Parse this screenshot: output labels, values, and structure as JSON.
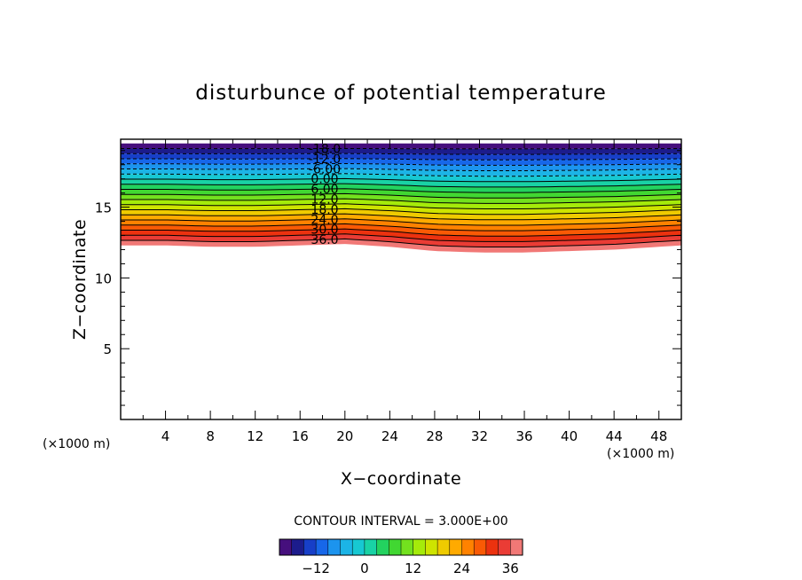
{
  "chart_data": {
    "type": "contour",
    "title": "disturbunce of potential temperature",
    "xlabel": "X−coordinate",
    "ylabel": "Z−coordinate",
    "x_unit_label_left": "(×1000 m)",
    "x_unit_label_right": "(×1000 m)",
    "xlim": [
      0,
      50
    ],
    "ylim": [
      0,
      19.8
    ],
    "x_ticks": [
      4,
      8,
      12,
      16,
      20,
      24,
      28,
      32,
      36,
      40,
      44,
      48
    ],
    "y_ticks": [
      5,
      10,
      15
    ],
    "contour_interval_label": "CONTOUR INTERVAL = 3.000E+00",
    "contour_interval": 3,
    "level_min": -21,
    "level_max": 39,
    "contour_labels": [
      "-18.0",
      "-12.0",
      "-6.00",
      "0.00",
      "6.00",
      "12.0",
      "18.0",
      "24.0",
      "30.0",
      "36.0"
    ],
    "colorbar_ticks": [
      "−12",
      "0",
      "12",
      "24",
      "36"
    ],
    "colorbar_tick_values": [
      -12,
      0,
      12,
      24,
      36
    ],
    "layer_top_z": 19.5,
    "layer_bottom_profile_x": [
      0,
      4,
      8,
      12,
      16,
      20,
      24,
      28,
      32,
      36,
      40,
      44,
      48,
      50
    ],
    "layer_bottom_profile_z": [
      12.3,
      12.3,
      12.2,
      12.2,
      12.3,
      12.4,
      12.2,
      11.9,
      11.8,
      11.8,
      11.9,
      12.0,
      12.2,
      12.3
    ]
  }
}
